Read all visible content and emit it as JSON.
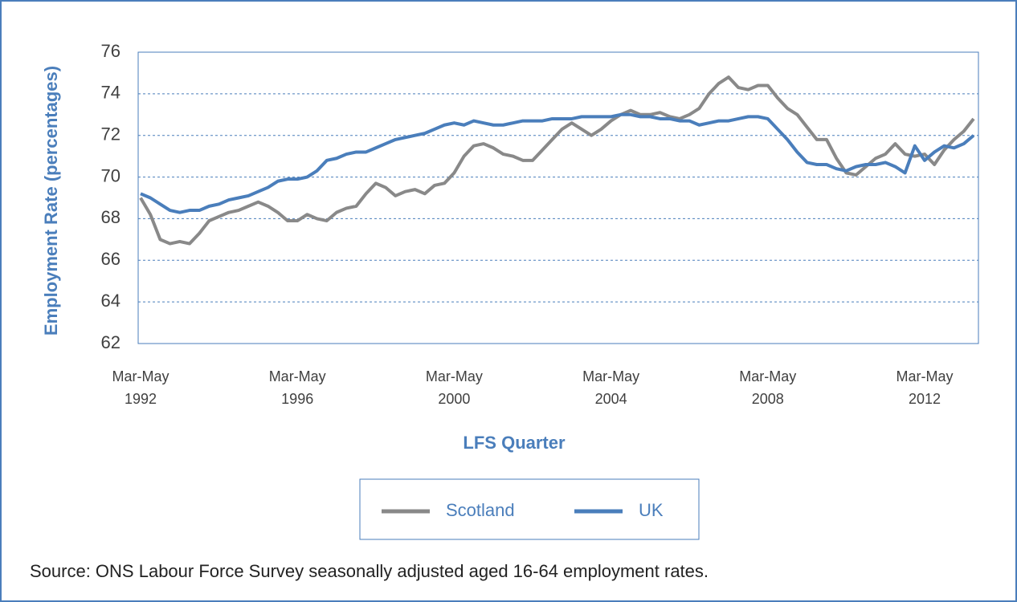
{
  "chart_data": {
    "type": "line",
    "y_label": "Employment Rate (percentages)",
    "x_label": "LFS Quarter",
    "source": "Source: ONS Labour Force Survey seasonally adjusted aged 16-64 employment rates.",
    "categories": [
      "Mar-May 1992",
      null,
      null,
      null,
      null,
      null,
      null,
      null,
      null,
      null,
      null,
      null,
      null,
      null,
      null,
      null,
      "Mar-May 1996",
      null,
      null,
      null,
      null,
      null,
      null,
      null,
      null,
      null,
      null,
      null,
      null,
      null,
      null,
      null,
      "Mar-May 2000",
      null,
      null,
      null,
      null,
      null,
      null,
      null,
      null,
      null,
      null,
      null,
      null,
      null,
      null,
      null,
      "Mar-May 2004",
      null,
      null,
      null,
      null,
      null,
      null,
      null,
      null,
      null,
      null,
      null,
      null,
      null,
      null,
      null,
      "Mar-May 2008",
      null,
      null,
      null,
      null,
      null,
      null,
      null,
      null,
      null,
      null,
      null,
      null,
      null,
      null,
      null,
      "Mar-May 2012",
      null,
      null,
      null,
      null,
      null
    ],
    "series": [
      {
        "name": "Scotland",
        "color": "#898989",
        "values": [
          69.0,
          68.2,
          67.0,
          66.8,
          66.9,
          66.8,
          67.3,
          67.9,
          68.1,
          68.3,
          68.4,
          68.6,
          68.8,
          68.6,
          68.3,
          67.9,
          67.9,
          68.2,
          68.0,
          67.9,
          68.3,
          68.5,
          68.6,
          69.2,
          69.7,
          69.5,
          69.1,
          69.3,
          69.4,
          69.2,
          69.6,
          69.7,
          70.2,
          71.0,
          71.5,
          71.6,
          71.4,
          71.1,
          71.0,
          70.8,
          70.8,
          71.3,
          71.8,
          72.3,
          72.6,
          72.3,
          72.0,
          72.3,
          72.7,
          73.0,
          73.2,
          73.0,
          73.0,
          73.1,
          72.9,
          72.8,
          73.0,
          73.3,
          74.0,
          74.5,
          74.8,
          74.3,
          74.2,
          74.4,
          74.4,
          73.8,
          73.3,
          73.0,
          72.4,
          71.8,
          71.8,
          70.9,
          70.2,
          70.1,
          70.5,
          70.9,
          71.1,
          71.6,
          71.1,
          71.0,
          71.1,
          70.6,
          71.3,
          71.8,
          72.2,
          72.8
        ]
      },
      {
        "name": "UK",
        "color": "#4a7ebb",
        "values": [
          69.2,
          69.0,
          68.7,
          68.4,
          68.3,
          68.4,
          68.4,
          68.6,
          68.7,
          68.9,
          69.0,
          69.1,
          69.3,
          69.5,
          69.8,
          69.9,
          69.9,
          70.0,
          70.3,
          70.8,
          70.9,
          71.1,
          71.2,
          71.2,
          71.4,
          71.6,
          71.8,
          71.9,
          72.0,
          72.1,
          72.3,
          72.5,
          72.6,
          72.5,
          72.7,
          72.6,
          72.5,
          72.5,
          72.6,
          72.7,
          72.7,
          72.7,
          72.8,
          72.8,
          72.8,
          72.9,
          72.9,
          72.9,
          72.9,
          73.0,
          73.0,
          72.9,
          72.9,
          72.8,
          72.8,
          72.7,
          72.7,
          72.5,
          72.6,
          72.7,
          72.7,
          72.8,
          72.9,
          72.9,
          72.8,
          72.3,
          71.8,
          71.2,
          70.7,
          70.6,
          70.6,
          70.4,
          70.3,
          70.5,
          70.6,
          70.6,
          70.7,
          70.5,
          70.2,
          71.5,
          70.8,
          71.2,
          71.5,
          71.4,
          71.6,
          72.0
        ]
      }
    ],
    "ylim": [
      62,
      76
    ],
    "yticks": [
      62,
      64,
      66,
      68,
      70,
      72,
      74,
      76
    ],
    "grid": true,
    "legend": "bottom"
  }
}
